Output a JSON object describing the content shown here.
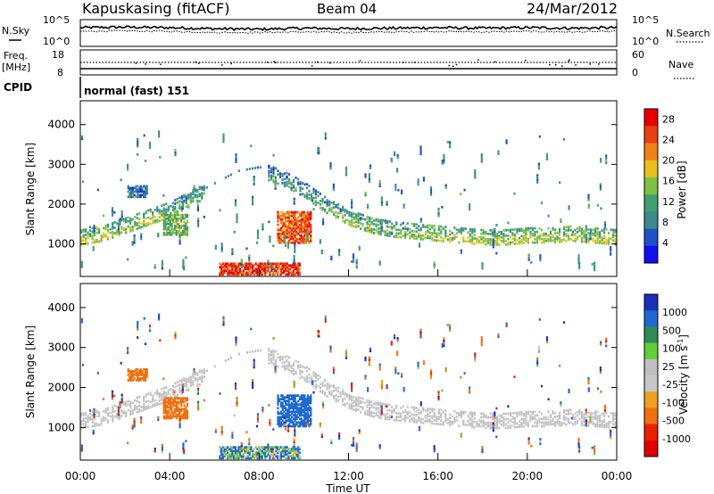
{
  "header": {
    "station": "Kapuskasing (fitACF)",
    "beam": "Beam 04",
    "date": "24/Mar/2012"
  },
  "noise_panel": {
    "left_label": "N.Sky",
    "left_ticks": [
      "10^5",
      "10^0"
    ],
    "right_label": "N.Search",
    "right_ticks": [
      "10^5",
      "10^0"
    ]
  },
  "freq_panel": {
    "left_label_line1": "Freq.",
    "left_label_line2": "[MHz]",
    "left_ticks": [
      "18",
      "8"
    ],
    "right_label": "Nave",
    "right_ticks": [
      "60",
      "0"
    ]
  },
  "cpid": {
    "label": "CPID",
    "mode_text": "normal (fast) 151"
  },
  "colors": {
    "power_scale": [
      "#1010ee",
      "#1f50c8",
      "#3d8a8c",
      "#3fa070",
      "#7fc040",
      "#e8c020",
      "#f08018",
      "#e84010",
      "#e80000"
    ],
    "velocity_scale": [
      "#1b2fb8",
      "#1f6ad0",
      "#2e8b57",
      "#5fcf3a",
      "#c0c0c0",
      "#c8c8c8",
      "#f0a020",
      "#f07010",
      "#e82000",
      "#e00000"
    ]
  },
  "chart_data": [
    {
      "type": "line",
      "title": "N.Sky / N.Search",
      "x": [
        "00:00",
        "02:00",
        "04:00",
        "06:00",
        "08:00",
        "10:00",
        "12:00",
        "14:00",
        "16:00",
        "18:00",
        "20:00",
        "22:00",
        "00:00"
      ],
      "series": [
        {
          "name": "N.Sky",
          "values": [
            3.5,
            3.6,
            3.5,
            3.3,
            3.2,
            3.4,
            3.3,
            3.4,
            3.5,
            3.4,
            3.5,
            3.4,
            3.5
          ]
        },
        {
          "name": "N.Search",
          "values": [
            2.8,
            2.9,
            2.8,
            2.6,
            2.6,
            2.7,
            2.6,
            2.7,
            2.8,
            2.7,
            2.8,
            2.7,
            2.8
          ]
        }
      ],
      "ylim": [
        0,
        5
      ]
    },
    {
      "type": "line",
      "x": [
        "00:00",
        "02:00",
        "04:00",
        "06:00",
        "08:00",
        "10:00",
        "12:00",
        "14:00",
        "16:00",
        "18:00",
        "20:00",
        "22:00",
        "00:00"
      ],
      "series": [
        {
          "name": "Freq.",
          "values": [
            10.5,
            10.5,
            10.5,
            10.5,
            10.5,
            10.5,
            10.5,
            10.5,
            10.5,
            10.5,
            10.5,
            10.5,
            10.5
          ]
        },
        {
          "name": "Nave",
          "values": [
            30,
            30,
            30,
            30,
            30,
            30,
            30,
            30,
            30,
            30,
            30,
            30,
            30
          ]
        }
      ],
      "ylim": [
        8,
        18
      ]
    },
    {
      "type": "heatmap",
      "ylabel": "Slant Range [km]",
      "ylim": [
        180,
        4600
      ],
      "y_ticks": [
        "1000",
        "2000",
        "3000",
        "4000"
      ],
      "colorbar_label": "Power [dB]",
      "colorbar_ticks": [
        "28",
        "24",
        "20",
        "16",
        "12",
        "8",
        "4"
      ],
      "colorbar_range": [
        0,
        30
      ],
      "backscatter_band": {
        "hours": [
          0,
          1,
          2,
          3,
          4,
          5,
          6,
          7,
          8,
          9,
          10,
          11,
          12,
          13,
          14,
          15,
          16,
          17,
          18,
          19,
          20,
          21,
          22,
          23,
          24
        ],
        "range_km": [
          1200,
          1300,
          1500,
          1700,
          1900,
          2200,
          2500,
          2800,
          2900,
          2700,
          2400,
          2000,
          1700,
          1500,
          1400,
          1350,
          1300,
          1250,
          1200,
          1200,
          1250,
          1250,
          1300,
          1250,
          1200
        ],
        "power_db": [
          12,
          14,
          10,
          12,
          10,
          8,
          8,
          6,
          6,
          6,
          6,
          8,
          10,
          10,
          10,
          10,
          12,
          12,
          12,
          12,
          12,
          12,
          12,
          12,
          12
        ]
      },
      "patches": [
        {
          "t0": 8.8,
          "t1": 10.3,
          "r0": 1000,
          "r1": 1800,
          "power_db": 24
        },
        {
          "t0": 3.7,
          "t1": 4.8,
          "r0": 1200,
          "r1": 1700,
          "power_db": 14
        },
        {
          "t0": 6.2,
          "t1": 9.8,
          "r0": 200,
          "r1": 500,
          "power_db": 26
        },
        {
          "t0": 2.1,
          "t1": 3.0,
          "r0": 2150,
          "r1": 2450,
          "power_db": 8
        }
      ]
    },
    {
      "type": "heatmap",
      "ylabel": "Slant Range [km]",
      "xlabel": "Time UT",
      "x_ticks": [
        "00:00",
        "04:00",
        "08:00",
        "12:00",
        "16:00",
        "20:00",
        "00:00"
      ],
      "ylim": [
        180,
        4600
      ],
      "y_ticks": [
        "1000",
        "2000",
        "3000",
        "4000"
      ],
      "colorbar_label": "Velocity [m s^-1]",
      "colorbar_ticks": [
        "1000",
        "500",
        "100",
        "25",
        "-25",
        "-100",
        "-500",
        "-1000"
      ],
      "colorbar_range": [
        -1000,
        1000
      ],
      "patches": [
        {
          "t0": 8.8,
          "t1": 10.3,
          "r0": 1000,
          "r1": 1800,
          "velocity": 300
        },
        {
          "t0": 3.7,
          "t1": 4.8,
          "r0": 1200,
          "r1": 1700,
          "velocity": -300
        },
        {
          "t0": 6.2,
          "t1": 9.8,
          "r0": 200,
          "r1": 500,
          "velocity": 100
        },
        {
          "t0": 2.1,
          "t1": 3.0,
          "r0": 2150,
          "r1": 2450,
          "velocity": -300
        }
      ]
    }
  ]
}
